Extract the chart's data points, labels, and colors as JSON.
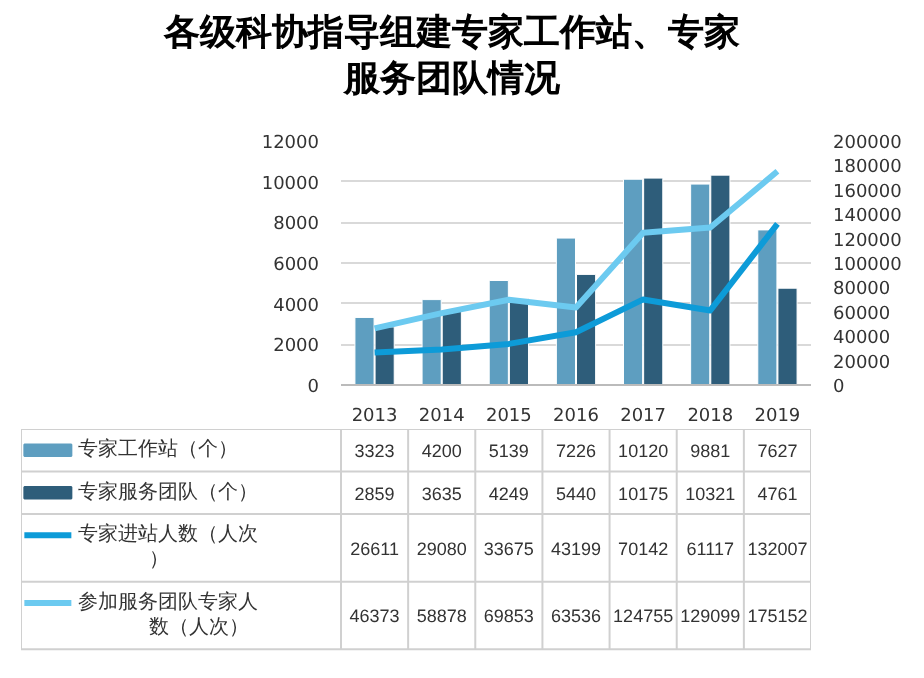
{
  "chart_data": {
    "type": "bar",
    "title": "各级科协指导组建专家工作站、专家服务团队情况",
    "categories": [
      "2013",
      "2014",
      "2015",
      "2016",
      "2017",
      "2018",
      "2019"
    ],
    "series": [
      {
        "name": "专家工作站（个）",
        "color": "#5e9ec0",
        "values": [
          3323,
          4200,
          5139,
          7226,
          10120,
          9881,
          7627
        ]
      },
      {
        "name": "专家服务团队（个）",
        "color": "#2e5d7a",
        "values": [
          2859,
          3635,
          4249,
          5440,
          10175,
          10321,
          4761
        ]
      },
      {
        "name": "专家进站人数（人次）",
        "type": "line",
        "axis": "y2",
        "color": "#0d9bd8",
        "values": [
          26611,
          29080,
          33675,
          43199,
          70142,
          61117,
          132007
        ]
      },
      {
        "name": "参加服务团队专家人数（人次）",
        "type": "line",
        "axis": "y2",
        "color": "#6ccaf0",
        "values": [
          46373,
          58878,
          69853,
          63536,
          124755,
          129099,
          175152
        ]
      }
    ],
    "ylim": [
      0,
      12000
    ],
    "yticks": [
      0,
      2000,
      4000,
      6000,
      8000,
      10000,
      12000
    ],
    "y2lim": [
      0,
      200000
    ],
    "y2ticks": [
      0,
      20000,
      40000,
      60000,
      80000,
      100000,
      120000,
      140000,
      160000,
      180000,
      200000
    ],
    "grid": "y",
    "legend": "bottom",
    "data_labels": true
  }
}
